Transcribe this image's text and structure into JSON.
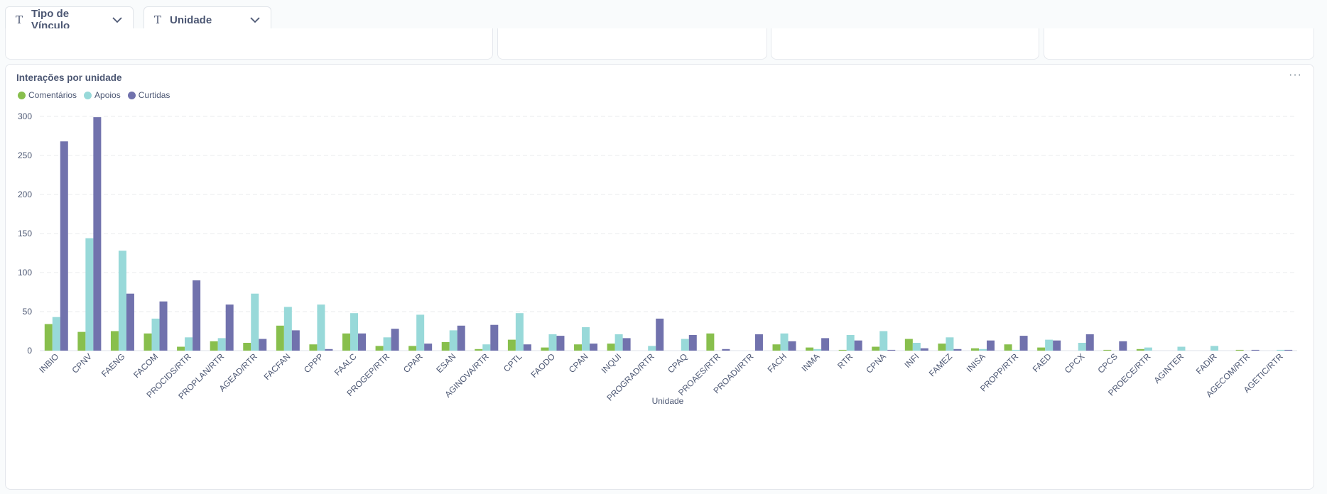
{
  "filters": [
    {
      "icon": "text-type-icon",
      "label": "Tipo de Vínculo"
    },
    {
      "icon": "text-type-icon",
      "label": "Unidade"
    }
  ],
  "card": {
    "title": "Interações por unidade",
    "more_icon": "ellipsis-icon"
  },
  "colors": {
    "Comentários": "#88bf4d",
    "Apoios": "#98d9d9",
    "Curtidas": "#7172ad"
  },
  "chart_data": {
    "type": "bar",
    "title": "Interações por unidade",
    "xlabel": "Unidade",
    "ylabel": "",
    "ylim": [
      0,
      300
    ],
    "yticks": [
      0,
      50,
      100,
      150,
      200,
      250,
      300
    ],
    "grid": true,
    "legend_position": "top-left",
    "categories": [
      "INBIO",
      "CPNV",
      "FAENG",
      "FACOM",
      "PROCIDS/RTR",
      "PROPLAN/RTR",
      "AGEAD/RTR",
      "FACFAN",
      "CPPP",
      "FAALC",
      "PROGEP/RTR",
      "CPAR",
      "ESAN",
      "AGINOVA/RTR",
      "CPTL",
      "FAODO",
      "CPAN",
      "INQUI",
      "PROGRAD/RTR",
      "CPAQ",
      "PROAES/RTR",
      "PROADI/RTR",
      "FACH",
      "INMA",
      "RTR",
      "CPNA",
      "INFI",
      "FAMEZ",
      "INISA",
      "PROPP/RTR",
      "FAED",
      "CPCX",
      "CPCS",
      "PROECE/RTR",
      "AGINTER",
      "FADIR",
      "AGECOM/RTR",
      "AGETIC/RTR"
    ],
    "series": [
      {
        "name": "Comentários",
        "values": [
          34,
          24,
          25,
          22,
          5,
          12,
          10,
          32,
          8,
          22,
          6,
          6,
          11,
          2,
          14,
          4,
          8,
          9,
          0,
          0,
          22,
          0,
          8,
          4,
          1,
          5,
          15,
          9,
          3,
          8,
          4,
          0,
          1,
          2,
          0,
          0,
          1,
          0
        ]
      },
      {
        "name": "Apoios",
        "values": [
          43,
          144,
          128,
          41,
          17,
          16,
          73,
          56,
          59,
          48,
          17,
          46,
          26,
          8,
          48,
          21,
          30,
          21,
          6,
          15,
          0,
          0,
          22,
          2,
          20,
          25,
          10,
          17,
          2,
          1,
          14,
          10,
          0,
          4,
          5,
          6,
          0,
          1
        ]
      },
      {
        "name": "Curtidas",
        "values": [
          268,
          299,
          73,
          63,
          90,
          59,
          15,
          26,
          2,
          22,
          28,
          9,
          32,
          33,
          8,
          19,
          9,
          16,
          41,
          20,
          2,
          21,
          12,
          16,
          13,
          1,
          3,
          2,
          13,
          19,
          13,
          21,
          12,
          0,
          0,
          0,
          1,
          1
        ]
      }
    ]
  }
}
